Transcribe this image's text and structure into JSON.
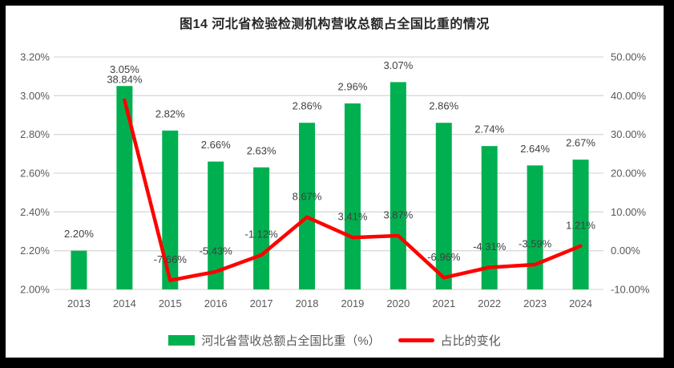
{
  "title": "图14 河北省检验检测机构营收总额占全国比重的情况",
  "colors": {
    "bar": "#00B050",
    "line": "#FF0000",
    "grid": "#D9D9D9",
    "axis_text": "#595959",
    "label_text": "#404040",
    "title_text": "#262626",
    "frame": "#000000",
    "background": "#FFFFFF"
  },
  "chart_data": {
    "type": "combo",
    "title": "图14 河北省检验检测机构营收总额占全国比重的情况",
    "categories": [
      "2013",
      "2014",
      "2015",
      "2016",
      "2017",
      "2018",
      "2019",
      "2020",
      "2021",
      "2022",
      "2023",
      "2024"
    ],
    "series": [
      {
        "name": "河北省营收总额占全国比重（%）",
        "type": "bar",
        "axis": "left",
        "color": "#00B050",
        "values": [
          2.2,
          3.05,
          2.82,
          2.66,
          2.63,
          2.86,
          2.96,
          3.07,
          2.86,
          2.74,
          2.64,
          2.67
        ],
        "labels": [
          "2.20%",
          "3.05%",
          "2.82%",
          "2.66%",
          "2.63%",
          "2.86%",
          "2.96%",
          "3.07%",
          "2.86%",
          "2.74%",
          "2.64%",
          "2.67%"
        ]
      },
      {
        "name": "占比的变化",
        "type": "line",
        "axis": "right",
        "color": "#FF0000",
        "values": [
          null,
          38.84,
          -7.66,
          -5.43,
          -1.12,
          8.67,
          3.41,
          3.87,
          -6.96,
          -4.31,
          -3.59,
          1.21
        ],
        "labels": [
          "",
          "38.84%",
          "-7.66%",
          "-5.43%",
          "-1.12%",
          "8.67%",
          "3.41%",
          "3.87%",
          "-6.96%",
          "-4.31%",
          "-3.59%",
          "1.21%"
        ]
      }
    ],
    "left_axis": {
      "min": 2.0,
      "max": 3.2,
      "tick_labels": [
        "3.20%",
        "3.00%",
        "2.80%",
        "2.60%",
        "2.40%",
        "2.20%",
        "2.00%"
      ]
    },
    "right_axis": {
      "min": -10,
      "max": 50,
      "tick_labels": [
        "50.00%",
        "40.00%",
        "30.00%",
        "20.00%",
        "10.00%",
        "0.00%",
        "-10.00%"
      ]
    },
    "grid": true,
    "legend_position": "bottom",
    "legend": [
      {
        "label": "河北省营收总额占全国比重（%）",
        "type": "bar"
      },
      {
        "label": "占比的变化",
        "type": "line"
      }
    ]
  }
}
